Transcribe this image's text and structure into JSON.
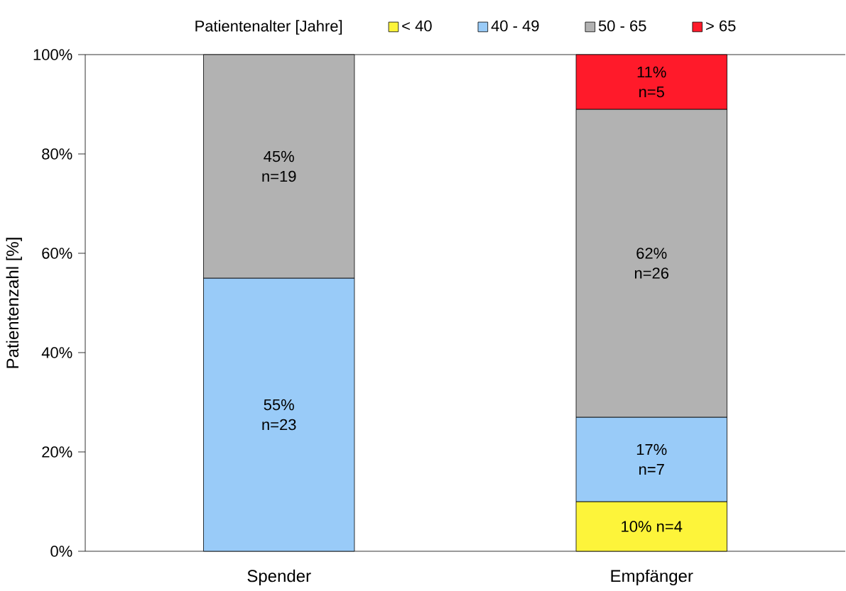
{
  "chart_data": {
    "type": "bar",
    "stacked": true,
    "ylabel": "Patientenzahl [%]",
    "legend_title": "Patientenalter [Jahre]",
    "legend": "top",
    "categories": [
      "Spender",
      "Empfänger"
    ],
    "ylim": [
      0,
      100
    ],
    "yticks": [
      {
        "value": 0,
        "label": "0%"
      },
      {
        "value": 20,
        "label": "20%"
      },
      {
        "value": 40,
        "label": "40%"
      },
      {
        "value": 60,
        "label": "60%"
      },
      {
        "value": 80,
        "label": "80%"
      },
      {
        "value": 100,
        "label": "100%"
      }
    ],
    "series": [
      {
        "name": "< 40",
        "color": "#fdf43a",
        "values": [
          null,
          10
        ],
        "value_labels": [
          null,
          "10% n=4"
        ]
      },
      {
        "name": "40 - 49",
        "color": "#99cbf8",
        "values": [
          55,
          17
        ],
        "value_labels": [
          "55% n=23",
          "17% n=7"
        ]
      },
      {
        "name": "50 - 65",
        "color": "#b2b2b2",
        "values": [
          45,
          62
        ],
        "value_labels": [
          "45% n=19",
          "62% n=26"
        ]
      },
      {
        "name": ">  65",
        "color": "#ff1a2a",
        "values": [
          null,
          11
        ],
        "value_labels": [
          null,
          "11% n=5"
        ]
      }
    ]
  }
}
